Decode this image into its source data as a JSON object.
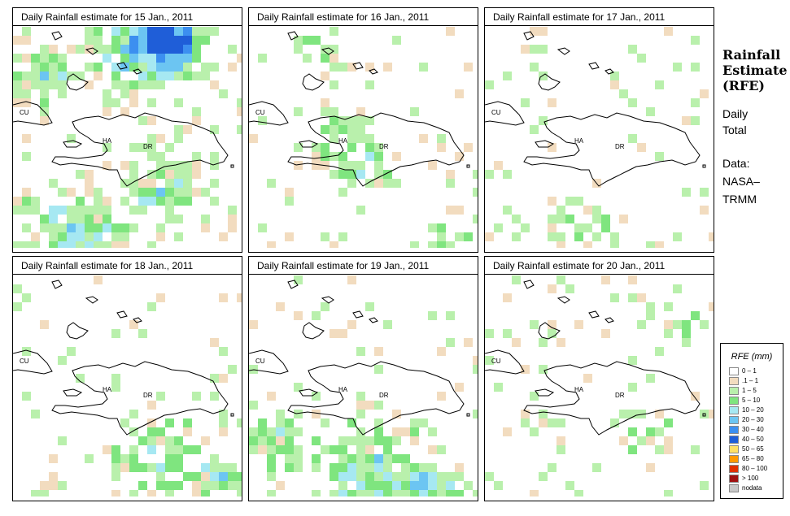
{
  "panels": [
    {
      "title": "Daily Rainfall estimate for  15 Jan., 2011"
    },
    {
      "title": "Daily Rainfall estimate for  16 Jan., 2011"
    },
    {
      "title": "Daily Rainfall estimate for  17 Jan., 2011"
    },
    {
      "title": "Daily Rainfall estimate for  18 Jan., 2011"
    },
    {
      "title": "Daily Rainfall estimate for  19 Jan., 2011"
    },
    {
      "title": "Daily Rainfall estimate for  20 Jan., 2011"
    }
  ],
  "map_labels": {
    "cu": "CU",
    "ha": "HA",
    "dr": "DR"
  },
  "sidebar": {
    "title_line1": "Rainfall",
    "title_line2": "Estimate",
    "title_line3": "(RFE)",
    "period_line1": "Daily",
    "period_line2": "Total",
    "data_line1": "Data:",
    "data_line2": "NASA–",
    "data_line3": "TRMM"
  },
  "legend": {
    "title": "RFE (mm)",
    "classes": [
      {
        "label": "0 – 1",
        "color": "#ffffff"
      },
      {
        "label": ".1 – 1",
        "color": "#f2dcbf"
      },
      {
        "label": "1 – 5",
        "color": "#b9f0ac"
      },
      {
        "label": "5 – 10",
        "color": "#7fe57f"
      },
      {
        "label": "10 – 20",
        "color": "#a6e8f2"
      },
      {
        "label": "20 – 30",
        "color": "#6cc5f2"
      },
      {
        "label": "30 – 40",
        "color": "#3c8ff0"
      },
      {
        "label": "40 – 50",
        "color": "#1f5ed8"
      },
      {
        "label": "50 – 65",
        "color": "#ffe066"
      },
      {
        "label": "65 – 80",
        "color": "#ff9900"
      },
      {
        "label": "80 – 100",
        "color": "#e03000"
      },
      {
        "label": "> 100",
        "color": "#a01010"
      },
      {
        "label": "nodata",
        "color": "#c8c8c8"
      }
    ]
  }
}
